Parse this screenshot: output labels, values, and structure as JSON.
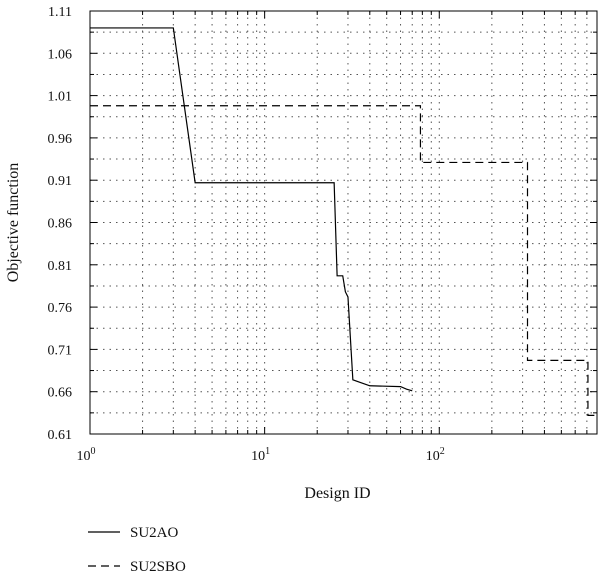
{
  "chart_data": {
    "type": "line",
    "xlabel": "Design ID",
    "ylabel": "Objective function",
    "xscale": "log",
    "xlim": [
      1,
      800
    ],
    "ylim": [
      0.61,
      1.11
    ],
    "grid": true,
    "x_ticks": [
      {
        "value": 1,
        "base": "10",
        "exp": "0"
      },
      {
        "value": 10,
        "base": "10",
        "exp": "1"
      },
      {
        "value": 100,
        "base": "10",
        "exp": "2"
      }
    ],
    "y_ticks": [
      "0.61",
      "0.66",
      "0.71",
      "0.76",
      "0.81",
      "0.86",
      "0.91",
      "0.96",
      "1.01",
      "1.06",
      "1.11"
    ],
    "legend_position": "bottom-left",
    "series": [
      {
        "name": "SU2AO",
        "style": "solid",
        "color": "#000000",
        "x": [
          1,
          3,
          4,
          25,
          26,
          28,
          29,
          30,
          32,
          40,
          60,
          65,
          70
        ],
        "y": [
          1.09,
          1.09,
          0.907,
          0.907,
          0.797,
          0.797,
          0.778,
          0.772,
          0.674,
          0.667,
          0.666,
          0.663,
          0.661
        ]
      },
      {
        "name": "SU2SBO",
        "style": "dashed",
        "color": "#000000",
        "x": [
          1,
          78,
          78,
          320,
          320,
          710,
          710,
          800
        ],
        "y": [
          0.998,
          0.998,
          0.931,
          0.931,
          0.697,
          0.697,
          0.632,
          0.632
        ]
      }
    ]
  }
}
